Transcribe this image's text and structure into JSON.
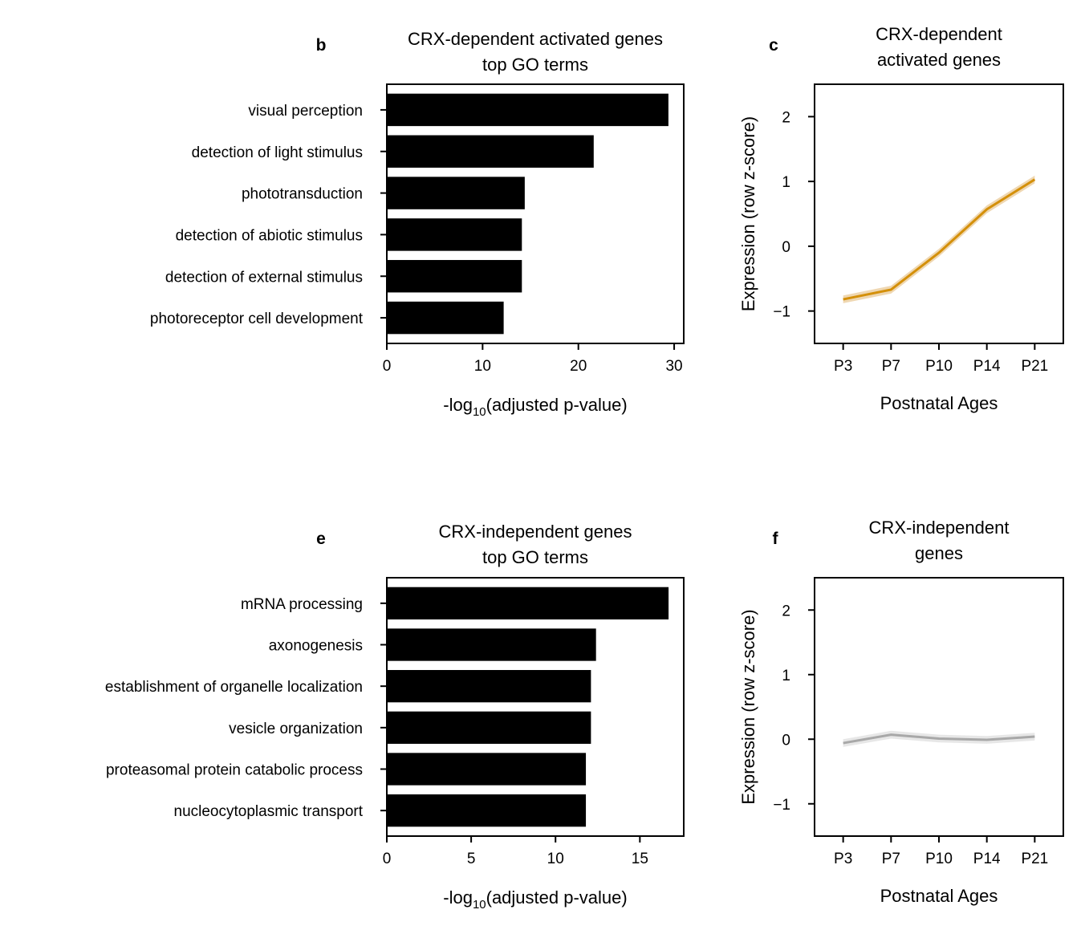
{
  "chart_data": [
    {
      "panel_letter": "b",
      "type": "bar",
      "orientation": "horizontal",
      "title": [
        "CRX-dependent activated genes",
        "top GO terms"
      ],
      "xlabel": "-log10(adjusted p-value)",
      "xlabel_parts": {
        "pre": "-log",
        "sub": "10",
        "post": "(adjusted p-value)"
      },
      "categories": [
        "visual perception",
        "detection of light stimulus",
        "phototransduction",
        "detection of abiotic stimulus",
        "detection of external stimulus",
        "photoreceptor cell development"
      ],
      "values": [
        29.4,
        21.6,
        14.4,
        14.1,
        14.1,
        12.2
      ],
      "xlim": [
        0,
        31
      ],
      "xticks": [
        0,
        10,
        20,
        30
      ],
      "color": "#000000"
    },
    {
      "panel_letter": "c",
      "type": "line",
      "title": [
        "CRX-dependent",
        "activated genes"
      ],
      "xlabel": "Postnatal Ages",
      "ylabel": "Expression (row z-score)",
      "categories": [
        "P3",
        "P7",
        "P10",
        "P14",
        "P21"
      ],
      "values": [
        -0.82,
        -0.67,
        -0.1,
        0.57,
        1.03
      ],
      "ylim": [
        -1.5,
        2.5
      ],
      "yticks": [
        -1,
        0,
        1,
        2
      ],
      "color": "#d4900a",
      "band_color": "#e8c690"
    },
    {
      "panel_letter": "e",
      "type": "bar",
      "orientation": "horizontal",
      "title": [
        "CRX-independent genes",
        "top GO terms"
      ],
      "xlabel": "-log10(adjusted p-value)",
      "xlabel_parts": {
        "pre": "-log",
        "sub": "10",
        "post": "(adjusted p-value)"
      },
      "categories": [
        "mRNA processing",
        "axonogenesis",
        "establishment of organelle localization",
        "vesicle organization",
        "proteasomal protein catabolic process",
        "nucleocytoplasmic transport"
      ],
      "values": [
        16.7,
        12.4,
        12.1,
        12.1,
        11.8,
        11.8
      ],
      "xlim": [
        0,
        17.6
      ],
      "xticks": [
        0,
        5,
        10,
        15
      ],
      "color": "#000000"
    },
    {
      "panel_letter": "f",
      "type": "line",
      "title": [
        "CRX-independent",
        "genes"
      ],
      "xlabel": "Postnatal Ages",
      "ylabel": "Expression (row z-score)",
      "categories": [
        "P3",
        "P7",
        "P10",
        "P14",
        "P21"
      ],
      "values": [
        -0.06,
        0.07,
        0.01,
        -0.01,
        0.04
      ],
      "ylim": [
        -1.5,
        2.5
      ],
      "yticks": [
        -1,
        0,
        1,
        2
      ],
      "color": "#a8a8a8",
      "band_color": "#dddddd"
    }
  ]
}
